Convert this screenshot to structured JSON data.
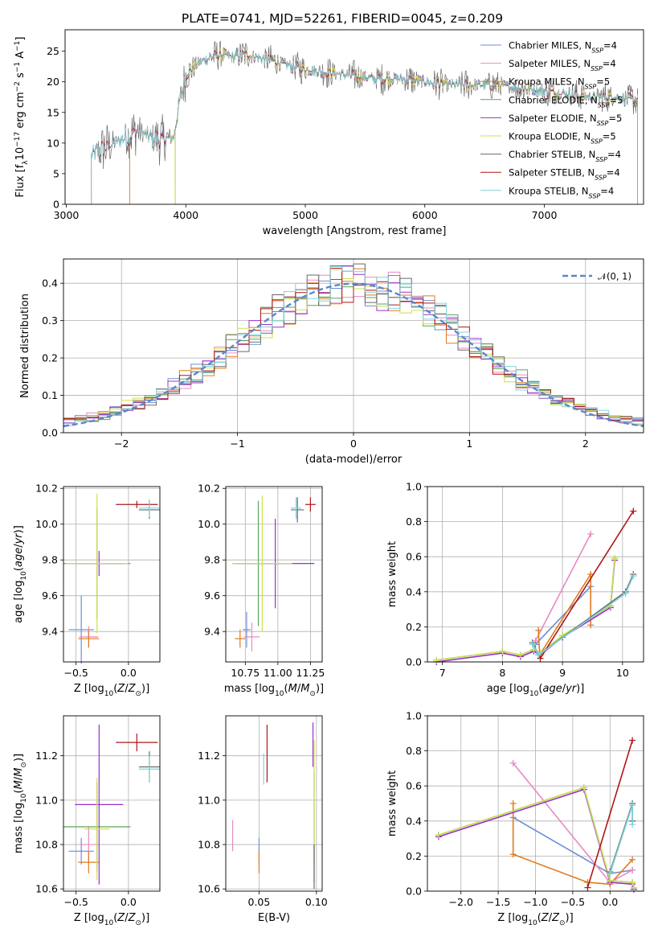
{
  "figure_title": "PLATE=0741, MJD=52261, FIBERID=0045, z=0.209",
  "colors": {
    "Chabrier MILES": "#6a8fd6",
    "Salpeter MILES": "#e78ac3",
    "Kroupa MILES": "#e07b1d",
    "Chabrier ELODIE": "#5aa55a",
    "Salpeter ELODIE": "#9b30c8",
    "Kroupa ELODIE": "#c9e052",
    "Chabrier STELIB": "#6a6a6a",
    "Salpeter STELIB": "#b01616",
    "Kroupa STELIB": "#7fd3dc",
    "normal": "#5b86cf"
  },
  "chart_data": [
    {
      "id": "spectrum",
      "type": "line",
      "xlabel": "wavelength [Angstrom, rest frame]",
      "ylabel": "Flux [f_λ 10^-17 erg cm^-2 s^-1 A^-1]",
      "xlim": [
        2990,
        7830
      ],
      "ylim": [
        0,
        28.5
      ],
      "xticks": [
        "3000",
        "4000",
        "5000",
        "6000",
        "7000"
      ],
      "yticks": [
        "0",
        "5",
        "10",
        "15",
        "20",
        "25"
      ],
      "grid": false,
      "legend_position": "top-right",
      "continuum_x": [
        3210,
        3300,
        3400,
        3500,
        3600,
        3700,
        3800,
        3900,
        3950,
        4000,
        4100,
        4200,
        4300,
        4400,
        4500,
        4600,
        4700,
        4800,
        4900,
        5000,
        5200,
        5400,
        5600,
        5800,
        6000,
        6200,
        6400,
        6600,
        6800,
        7000,
        7200,
        7400,
        7600,
        7780
      ],
      "continuum_y": [
        8,
        9,
        10,
        11,
        12,
        11,
        10.5,
        11,
        17,
        21,
        23,
        24,
        24.5,
        24,
        24.5,
        24,
        23.5,
        23,
        22.5,
        22,
        21.5,
        21,
        20.5,
        20.5,
        20,
        19.5,
        19.5,
        19.5,
        19,
        18.5,
        18,
        17.5,
        17.5,
        17
      ],
      "series": [
        {
          "name": "Chabrier MILES",
          "nssp": "4",
          "start": 3530
        },
        {
          "name": "Salpeter MILES",
          "nssp": "4",
          "start": 3530
        },
        {
          "name": "Kroupa MILES",
          "nssp": "5",
          "start": 3530
        },
        {
          "name": "Chabrier ELODIE",
          "nssp": "5",
          "start": 3910
        },
        {
          "name": "Salpeter ELODIE",
          "nssp": "5",
          "start": 3910
        },
        {
          "name": "Kroupa ELODIE",
          "nssp": "5",
          "start": 3910
        },
        {
          "name": "Chabrier STELIB",
          "nssp": "4",
          "start": 3210
        },
        {
          "name": "Salpeter STELIB",
          "nssp": "4",
          "start": 3210
        },
        {
          "name": "Kroupa STELIB",
          "nssp": "4",
          "start": 3210
        }
      ]
    },
    {
      "id": "residuals",
      "type": "bar",
      "xlabel": "(data-model)/error",
      "ylabel": "Normed distribution",
      "xlim": [
        -2.5,
        2.5
      ],
      "ylim": [
        0,
        0.465
      ],
      "xticks": [
        -2,
        -1,
        0,
        1,
        2
      ],
      "yticks": [
        0,
        0.1,
        0.2,
        0.3,
        0.4
      ],
      "grid": true,
      "legend_position": "top-right",
      "normal_label": "𝒩(0, 1)",
      "bin_width": 0.1
    },
    {
      "id": "age_Z",
      "type": "scatter",
      "xlabel": "Z [log10(Z/Z⊙)]",
      "ylabel": "age  [log10(age/yr)]",
      "xlim": [
        -0.62,
        0.3
      ],
      "ylim": [
        9.23,
        10.21
      ],
      "xticks": [
        -0.5,
        0.0
      ],
      "yticks": [
        9.4,
        9.6,
        9.8,
        10.0,
        10.2
      ],
      "grid": true,
      "errorbars": [
        {
          "s": "Chabrier MILES",
          "x": -0.45,
          "y": 9.41,
          "xe": 0.12,
          "ye": 0.19
        },
        {
          "s": "Salpeter MILES",
          "x": -0.38,
          "y": 9.37,
          "xe": 0.09,
          "ye": 0.06
        },
        {
          "s": "Kroupa MILES",
          "x": -0.38,
          "y": 9.36,
          "xe": 0.1,
          "ye": 0.05
        },
        {
          "s": "Chabrier ELODIE",
          "x": -0.3,
          "y": 9.78,
          "xe": 0.32,
          "ye": 0.31
        },
        {
          "s": "Salpeter ELODIE",
          "x": -0.28,
          "y": 9.78,
          "xe": 0.23,
          "ye": 0.07
        },
        {
          "s": "Kroupa ELODIE",
          "x": -0.3,
          "y": 9.78,
          "xe": 0.3,
          "ye": 0.39
        },
        {
          "s": "Chabrier STELIB",
          "x": 0.2,
          "y": 10.08,
          "xe": 0.1,
          "ye": 0.05
        },
        {
          "s": "Salpeter STELIB",
          "x": 0.08,
          "y": 10.11,
          "xe": 0.2,
          "ye": 0.02
        },
        {
          "s": "Kroupa STELIB",
          "x": 0.2,
          "y": 10.09,
          "xe": 0.1,
          "ye": 0.05
        }
      ]
    },
    {
      "id": "age_mass",
      "type": "scatter",
      "xlabel": "mass [log10(M/M⊙)]",
      "ylabel": "",
      "xlim": [
        10.6,
        11.34
      ],
      "ylim": [
        9.23,
        10.21
      ],
      "xticks": [
        10.75,
        11.0,
        11.25
      ],
      "yticks": [
        9.4,
        9.6,
        9.8,
        10.0,
        10.2
      ],
      "grid": true,
      "errorbars": [
        {
          "s": "Chabrier MILES",
          "x": 10.76,
          "y": 9.41,
          "xe": 0.03,
          "ye": 0.1
        },
        {
          "s": "Salpeter MILES",
          "x": 10.8,
          "y": 9.37,
          "xe": 0.06,
          "ye": 0.08
        },
        {
          "s": "Kroupa MILES",
          "x": 10.71,
          "y": 9.36,
          "xe": 0.04,
          "ye": 0.05
        },
        {
          "s": "Chabrier ELODIE",
          "x": 10.85,
          "y": 9.78,
          "xe": 0.2,
          "ye": 0.35
        },
        {
          "s": "Salpeter ELODIE",
          "x": 10.98,
          "y": 9.78,
          "xe": 0.3,
          "ye": 0.25
        },
        {
          "s": "Kroupa ELODIE",
          "x": 10.88,
          "y": 9.78,
          "xe": 0.23,
          "ye": 0.38
        },
        {
          "s": "Chabrier STELIB",
          "x": 11.15,
          "y": 10.08,
          "xe": 0.05,
          "ye": 0.07
        },
        {
          "s": "Salpeter STELIB",
          "x": 11.25,
          "y": 10.11,
          "xe": 0.04,
          "ye": 0.04
        },
        {
          "s": "Kroupa STELIB",
          "x": 11.14,
          "y": 10.09,
          "xe": 0.04,
          "ye": 0.06
        }
      ]
    },
    {
      "id": "weight_age",
      "type": "line",
      "xlabel": "age  [log10(age/yr)]",
      "ylabel": "mass weight",
      "xlim": [
        6.75,
        10.35
      ],
      "ylim": [
        0,
        1.0
      ],
      "xticks": [
        7,
        8,
        9,
        10
      ],
      "yticks": [
        0.0,
        0.2,
        0.4,
        0.6,
        0.8,
        1.0
      ],
      "grid": true,
      "series": [
        {
          "s": "Chabrier MILES",
          "x": [
            8.55,
            9.47
          ],
          "y": [
            0.1,
            0.43
          ]
        },
        {
          "s": "Salpeter MILES",
          "x": [
            8.55,
            9.47
          ],
          "y": [
            0.12,
            0.73
          ]
        },
        {
          "s": "Kroupa MILES",
          "x": [
            8.6,
            8.62,
            9.47,
            9.47
          ],
          "y": [
            0.18,
            0.04,
            0.5,
            0.21
          ]
        },
        {
          "s": "Chabrier ELODIE",
          "x": [
            6.9,
            8.0,
            8.3,
            8.52,
            8.63,
            9.0,
            9.8,
            9.87
          ],
          "y": [
            0.01,
            0.06,
            0.04,
            0.07,
            0.05,
            0.15,
            0.32,
            0.59
          ]
        },
        {
          "s": "Salpeter ELODIE",
          "x": [
            6.9,
            8.0,
            8.3,
            8.52,
            8.63,
            9.0,
            9.8,
            9.87
          ],
          "y": [
            0.0,
            0.05,
            0.03,
            0.06,
            0.04,
            0.14,
            0.31,
            0.58
          ]
        },
        {
          "s": "Kroupa ELODIE",
          "x": [
            6.9,
            8.0,
            8.3,
            8.52,
            8.63,
            9.0,
            9.8,
            9.87
          ],
          "y": [
            0.01,
            0.06,
            0.04,
            0.07,
            0.05,
            0.15,
            0.32,
            0.59
          ]
        },
        {
          "s": "Chabrier STELIB",
          "x": [
            8.5,
            8.6,
            10.05,
            10.18
          ],
          "y": [
            0.11,
            0.04,
            0.4,
            0.5
          ]
        },
        {
          "s": "Salpeter STELIB",
          "x": [
            8.63,
            10.18
          ],
          "y": [
            0.02,
            0.86
          ]
        },
        {
          "s": "Kroupa STELIB",
          "x": [
            8.5,
            8.6,
            10.05,
            10.18
          ],
          "y": [
            0.1,
            0.04,
            0.39,
            0.49
          ]
        }
      ]
    },
    {
      "id": "mass_Z",
      "type": "scatter",
      "xlabel": "Z [log10(Z/Z⊙)]",
      "ylabel": "mass [log10(M/M⊙)]",
      "xlim": [
        -0.62,
        0.3
      ],
      "ylim": [
        10.59,
        11.38
      ],
      "xticks": [
        -0.5,
        0.0
      ],
      "yticks": [
        10.6,
        10.8,
        11.0,
        11.2
      ],
      "grid": true,
      "errorbars": [
        {
          "s": "Chabrier MILES",
          "x": -0.45,
          "y": 10.77,
          "xe": 0.12,
          "ye": 0.06
        },
        {
          "s": "Salpeter MILES",
          "x": -0.38,
          "y": 10.8,
          "xe": 0.09,
          "ye": 0.08
        },
        {
          "s": "Kroupa MILES",
          "x": -0.38,
          "y": 10.72,
          "xe": 0.1,
          "ye": 0.05
        },
        {
          "s": "Chabrier ELODIE",
          "x": -0.3,
          "y": 10.88,
          "xe": 0.32,
          "ye": 0.2
        },
        {
          "s": "Salpeter ELODIE",
          "x": -0.28,
          "y": 10.98,
          "xe": 0.23,
          "ye": 0.36
        },
        {
          "s": "Kroupa ELODIE",
          "x": -0.3,
          "y": 10.87,
          "xe": 0.12,
          "ye": 0.23
        },
        {
          "s": "Chabrier STELIB",
          "x": 0.2,
          "y": 11.15,
          "xe": 0.1,
          "ye": 0.07
        },
        {
          "s": "Salpeter STELIB",
          "x": 0.08,
          "y": 11.26,
          "xe": 0.2,
          "ye": 0.04
        },
        {
          "s": "Kroupa STELIB",
          "x": 0.2,
          "y": 11.14,
          "xe": 0.1,
          "ye": 0.06
        }
      ]
    },
    {
      "id": "mass_ebv",
      "type": "scatter",
      "xlabel": "E(B-V)",
      "ylabel": "",
      "xlim": [
        0.021,
        0.105
      ],
      "ylim": [
        10.59,
        11.38
      ],
      "xticks": [
        0.05,
        0.1
      ],
      "yticks": [
        10.6,
        10.8,
        11.0,
        11.2
      ],
      "grid": true,
      "errorbars": [
        {
          "s": "Chabrier MILES",
          "x": 0.05,
          "y": 10.77,
          "xe": 0,
          "ye": 0.06
        },
        {
          "s": "Salpeter MILES",
          "x": 0.027,
          "y": 10.84,
          "xe": 0,
          "ye": 0.07
        },
        {
          "s": "Kroupa MILES",
          "x": 0.05,
          "y": 10.72,
          "xe": 0,
          "ye": 0.05
        },
        {
          "s": "Chabrier ELODIE",
          "x": 0.098,
          "y": 10.88,
          "xe": 0,
          "ye": 0.25
        },
        {
          "s": "Salpeter ELODIE",
          "x": 0.097,
          "y": 11.25,
          "xe": 0,
          "ye": 0.1
        },
        {
          "s": "Kroupa ELODIE",
          "x": 0.098,
          "y": 11.0,
          "xe": 0,
          "ye": 0.27
        },
        {
          "s": "Chabrier STELIB",
          "x": 0.098,
          "y": 10.7,
          "xe": 0,
          "ye": 0.1
        },
        {
          "s": "Salpeter STELIB",
          "x": 0.057,
          "y": 11.21,
          "xe": 0,
          "ye": 0.13
        },
        {
          "s": "Kroupa STELIB",
          "x": 0.054,
          "y": 11.14,
          "xe": 0,
          "ye": 0.07
        }
      ]
    },
    {
      "id": "weight_Z",
      "type": "line",
      "xlabel": "Z [log10(Z/Z⊙)]",
      "ylabel": "mass weight",
      "xlim": [
        -2.45,
        0.45
      ],
      "ylim": [
        0,
        1.0
      ],
      "xticks": [
        -2.0,
        -1.5,
        -1.0,
        -0.5,
        0.0
      ],
      "xticklabels": [
        "−2.0",
        "−1.5",
        "−1.0",
        "−0.5",
        "0.0"
      ],
      "yticks": [
        0.0,
        0.2,
        0.4,
        0.6,
        0.8,
        1.0
      ],
      "grid": true,
      "series": [
        {
          "s": "Chabrier MILES",
          "x": [
            -1.3,
            0.0,
            0.3
          ],
          "y": [
            0.42,
            0.1,
            0.12
          ]
        },
        {
          "s": "Salpeter MILES",
          "x": [
            -1.3,
            0.0,
            0.3
          ],
          "y": [
            0.73,
            0.05,
            0.12
          ]
        },
        {
          "s": "Kroupa MILES",
          "x": [
            -1.3,
            -1.3,
            -0.3,
            0.0,
            0.3
          ],
          "y": [
            0.5,
            0.21,
            0.05,
            0.04,
            0.18
          ]
        },
        {
          "s": "Chabrier ELODIE",
          "x": [
            -2.3,
            -0.35,
            0.0,
            0.3,
            0.32
          ],
          "y": [
            0.32,
            0.59,
            0.06,
            0.05,
            0.02
          ]
        },
        {
          "s": "Salpeter ELODIE",
          "x": [
            -2.3,
            -0.35,
            0.0,
            0.3,
            0.32
          ],
          "y": [
            0.31,
            0.58,
            0.05,
            0.04,
            0.01
          ]
        },
        {
          "s": "Kroupa ELODIE",
          "x": [
            -2.3,
            -0.35,
            0.0,
            0.3,
            0.32
          ],
          "y": [
            0.32,
            0.59,
            0.06,
            0.05,
            0.02
          ]
        },
        {
          "s": "Chabrier STELIB",
          "x": [
            0.0,
            0.3,
            0.3
          ],
          "y": [
            0.11,
            0.5,
            0.4
          ]
        },
        {
          "s": "Salpeter STELIB",
          "x": [
            -0.3,
            0.3
          ],
          "y": [
            0.02,
            0.86
          ]
        },
        {
          "s": "Kroupa STELIB",
          "x": [
            0.0,
            0.3,
            0.3
          ],
          "y": [
            0.1,
            0.49,
            0.38
          ]
        }
      ]
    }
  ]
}
